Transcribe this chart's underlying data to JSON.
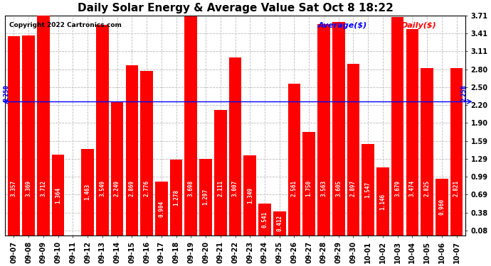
{
  "title": "Daily Solar Energy & Average Value Sat Oct 8 18:22",
  "copyright": "Copyright 2022 Cartronics.com",
  "legend_avg": "Average($)",
  "legend_daily": "Daily($)",
  "average_line": 2.258,
  "bar_color": "#FF0000",
  "avg_line_color": "#0000FF",
  "avg_label_color": "#0000FF",
  "daily_label_color": "#FF0000",
  "categories": [
    "09-07",
    "09-08",
    "09-09",
    "09-10",
    "09-11",
    "09-12",
    "09-13",
    "09-14",
    "09-15",
    "09-16",
    "09-17",
    "09-18",
    "09-19",
    "09-20",
    "09-21",
    "09-22",
    "09-23",
    "09-24",
    "09-25",
    "09-26",
    "09-27",
    "09-28",
    "09-29",
    "09-30",
    "10-01",
    "10-02",
    "10-03",
    "10-04",
    "10-05",
    "10-06",
    "10-07"
  ],
  "values": [
    3.357,
    3.369,
    3.712,
    1.364,
    0.0,
    1.463,
    3.549,
    2.249,
    2.869,
    2.776,
    0.904,
    1.278,
    3.698,
    1.297,
    2.111,
    3.007,
    1.349,
    0.541,
    0.412,
    2.561,
    1.75,
    3.563,
    3.605,
    2.897,
    1.547,
    1.146,
    3.679,
    3.474,
    2.825,
    0.96,
    2.821
  ],
  "ylim_min": 0.0,
  "ylim_max": 3.71,
  "yticks": [
    0.08,
    0.38,
    0.69,
    0.99,
    1.29,
    1.59,
    1.9,
    2.2,
    2.5,
    2.8,
    3.11,
    3.41,
    3.71
  ],
  "background_color": "#FFFFFF",
  "grid_color": "#BBBBBB",
  "title_fontsize": 11,
  "bar_label_fontsize": 5.5,
  "axis_label_fontsize": 7,
  "copyright_fontsize": 6.5,
  "legend_fontsize": 8
}
